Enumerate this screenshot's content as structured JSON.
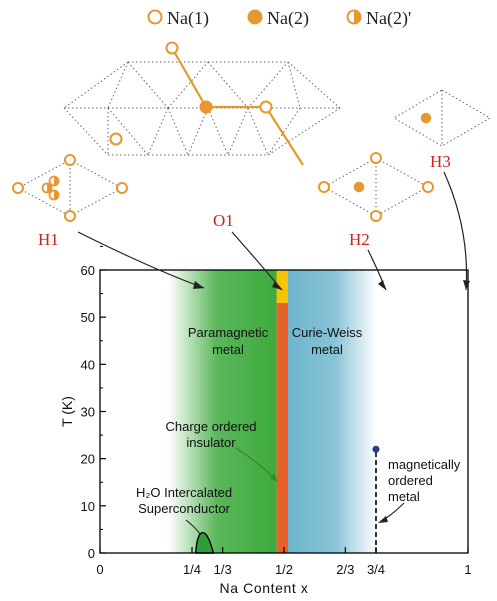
{
  "legend": {
    "na1": "Na(1)",
    "na2": "Na(2)",
    "na2p": "Na(2)'"
  },
  "structures": {
    "H1": "H1",
    "O1": "O1",
    "H2": "H2",
    "H3": "H3"
  },
  "colors": {
    "orange": "#E8962E",
    "structure_label": "#CC2222",
    "green": "#3DAA3D",
    "blue": "#6BB4CC",
    "charge_ordered": "#E8602A",
    "top_yellow": "#F5D000",
    "dot": "#2B3A8A"
  },
  "chart_data": {
    "type": "phase-diagram",
    "xlabel": "Na Content  x",
    "ylabel": "T (K)",
    "xlim": [
      0,
      1
    ],
    "ylim": [
      0,
      60
    ],
    "x_ticks": [
      {
        "value": 0,
        "label": "0"
      },
      {
        "value": 0.25,
        "label": "1/4"
      },
      {
        "value": 0.3333,
        "label": "1/3"
      },
      {
        "value": 0.5,
        "label": "1/2"
      },
      {
        "value": 0.6667,
        "label": "2/3"
      },
      {
        "value": 0.75,
        "label": "3/4"
      },
      {
        "value": 1,
        "label": "1"
      }
    ],
    "y_ticks": [
      0,
      10,
      20,
      30,
      40,
      50,
      60
    ],
    "regions": [
      {
        "label": "Paramagnetic metal",
        "x_start": 0.24,
        "x_end": 0.48,
        "color": "#3DAA3D"
      },
      {
        "label": "Curie-Weiss metal",
        "x_start": 0.5,
        "x_end": 0.73,
        "color": "#6BB4CC"
      },
      {
        "label": "Charge ordered insulator",
        "x_start": 0.48,
        "x_end": 0.5,
        "color": "#E8602A"
      }
    ],
    "annotations": [
      {
        "text": "H₂O Intercalated Superconductor"
      },
      {
        "text": "magnetically ordered metal"
      }
    ],
    "superconducting_dome": {
      "x": [
        0.26,
        0.3
      ],
      "tc_max": 4.5
    },
    "magnetic_point": {
      "x": 0.75,
      "T": 22
    }
  }
}
